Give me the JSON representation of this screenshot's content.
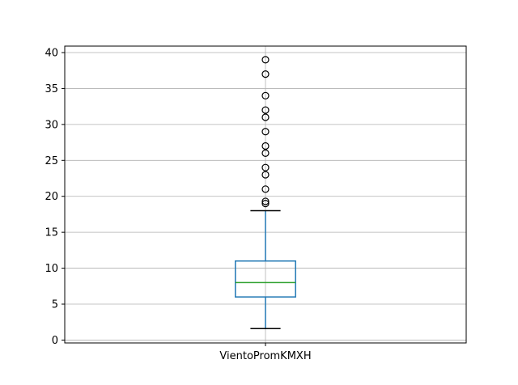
{
  "chart_data": {
    "type": "boxplot",
    "title": "",
    "xlabel": "",
    "ylabel": "",
    "categories": [
      "VientoPromKMXH"
    ],
    "ylim": [
      -0.4,
      40.9
    ],
    "yticks": [
      0,
      5,
      10,
      15,
      20,
      25,
      30,
      35,
      40
    ],
    "grid": true,
    "boxes": [
      {
        "name": "VientoPromKMXH",
        "whisker_low": 1.6,
        "q1": 6,
        "median": 8,
        "q3": 11,
        "whisker_high": 18,
        "outliers": [
          19,
          19.3,
          21,
          23,
          24,
          26,
          27,
          29,
          31,
          32,
          34,
          37,
          39
        ]
      }
    ],
    "colors": {
      "box": "#1f77b4",
      "median": "#2ca02c",
      "whisker_cap": "#000000",
      "outlier": "#000000",
      "grid": "#b0b0b0"
    }
  }
}
